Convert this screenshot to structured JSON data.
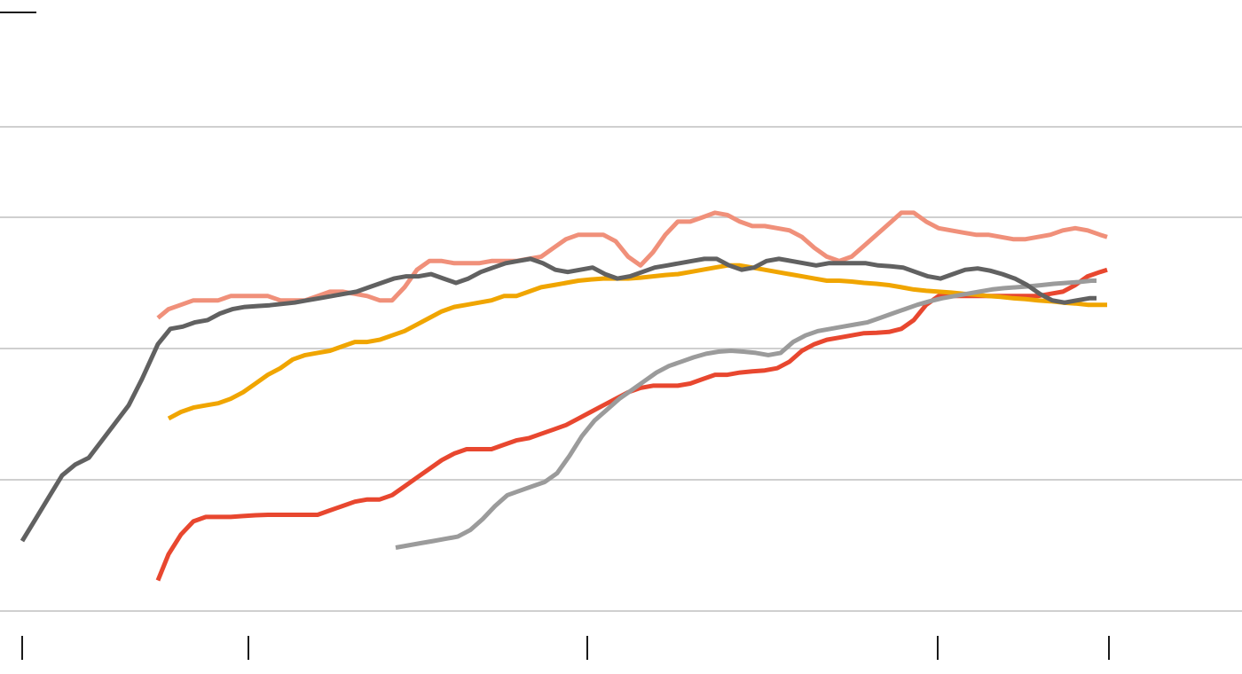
{
  "chart_data": {
    "type": "line",
    "title": "",
    "xlabel": "",
    "ylabel": "",
    "grid": true,
    "xlim": [
      0,
      1400
    ],
    "ylim": [
      0,
      108
    ],
    "gridlines_y": [
      0,
      30,
      60,
      90,
      110
    ],
    "ticks_x": [
      25,
      280,
      662,
      1057,
      1250
    ],
    "colors": [
      "#f0907a",
      "#e8472f",
      "#f0a500",
      "#9b9b9b",
      "#616161"
    ],
    "series": [
      {
        "x": [
          178,
          190,
          204,
          218,
          232,
          246,
          260,
          274,
          288,
          302,
          316,
          330,
          344,
          358,
          372,
          386,
          400,
          414,
          428,
          442,
          456,
          470,
          484,
          498,
          512,
          526,
          540,
          554,
          568,
          582,
          596,
          610,
          624,
          638,
          652,
          666,
          680,
          694,
          708,
          722,
          736,
          750,
          764,
          778,
          792,
          806,
          820,
          834,
          848,
          862,
          876,
          890,
          904,
          918,
          932,
          946,
          960,
          974,
          988,
          1002,
          1016,
          1030,
          1044,
          1058,
          1072,
          1086,
          1100,
          1114,
          1128,
          1142,
          1156,
          1170,
          1184,
          1198,
          1212,
          1226,
          1240,
          1248
        ],
        "y": [
          67,
          69,
          70,
          71,
          71,
          71,
          72,
          72,
          72,
          72,
          71,
          71,
          71,
          72,
          73,
          73,
          72.5,
          72,
          71,
          71,
          74,
          78,
          80,
          80,
          79.5,
          79.5,
          79.5,
          80,
          80,
          80,
          80.5,
          81,
          83,
          85,
          86,
          86,
          86,
          84.5,
          81,
          79,
          82,
          86,
          89,
          89,
          90,
          91,
          90.5,
          89,
          88,
          88,
          87.5,
          87,
          85.5,
          83,
          81,
          80,
          81,
          83.5,
          86,
          88.5,
          91,
          91,
          89,
          87.5,
          87,
          86.5,
          86,
          86,
          85.5,
          85,
          85,
          85.5,
          86,
          87,
          87.5,
          87,
          86,
          85.5
        ]
      },
      {
        "x": [
          178,
          190,
          204,
          218,
          232,
          246,
          260,
          274,
          288,
          302,
          316,
          330,
          344,
          358,
          372,
          386,
          400,
          414,
          428,
          442,
          456,
          470,
          484,
          498,
          512,
          526,
          540,
          554,
          568,
          582,
          596,
          610,
          624,
          638,
          652,
          666,
          680,
          694,
          708,
          722,
          736,
          750,
          764,
          778,
          792,
          806,
          820,
          834,
          848,
          862,
          876,
          890,
          904,
          918,
          932,
          946,
          960,
          974,
          988,
          1002,
          1016,
          1030,
          1044,
          1058,
          1072,
          1086,
          1100,
          1114,
          1128,
          1142,
          1156,
          1170,
          1184,
          1198,
          1212,
          1226,
          1240,
          1248
        ],
        "y": [
          7,
          13,
          17.5,
          20.5,
          21.5,
          21.5,
          21.5,
          21.7,
          21.9,
          22,
          22,
          22,
          22,
          22,
          23,
          24,
          25,
          25.5,
          25.5,
          26.5,
          28.5,
          30.5,
          32.5,
          34.5,
          36,
          37,
          37,
          37,
          38,
          39,
          39.5,
          40.5,
          41.5,
          42.5,
          44,
          45.5,
          47,
          48.5,
          50,
          51,
          51.5,
          51.5,
          51.5,
          52,
          53,
          54,
          54,
          54.5,
          54.8,
          55,
          55.5,
          57,
          59.5,
          61,
          62,
          62.5,
          63,
          63.5,
          63.6,
          63.8,
          64.5,
          66.5,
          70,
          72,
          72,
          72,
          72,
          72,
          72,
          72,
          72,
          72,
          72.5,
          73,
          74.5,
          76.5,
          77.5,
          78
        ]
      },
      {
        "x": [
          190,
          204,
          218,
          232,
          246,
          260,
          274,
          288,
          302,
          316,
          330,
          344,
          358,
          372,
          386,
          400,
          414,
          428,
          442,
          456,
          470,
          484,
          498,
          512,
          526,
          540,
          554,
          568,
          582,
          596,
          610,
          624,
          638,
          652,
          666,
          680,
          694,
          708,
          722,
          736,
          750,
          764,
          778,
          792,
          806,
          820,
          834,
          848,
          862,
          876,
          890,
          904,
          918,
          932,
          946,
          960,
          974,
          988,
          1002,
          1016,
          1030,
          1044,
          1058,
          1072,
          1086,
          1100,
          1114,
          1128,
          1142,
          1156,
          1170,
          1184,
          1198,
          1212,
          1226,
          1240,
          1248
        ],
        "y": [
          44,
          45.5,
          46.5,
          47,
          47.5,
          48.5,
          50,
          52,
          54,
          55.5,
          57.5,
          58.5,
          59,
          59.5,
          60.5,
          61.5,
          61.5,
          62,
          63,
          64,
          65.5,
          67,
          68.5,
          69.5,
          70,
          70.5,
          71,
          72,
          72,
          73,
          74,
          74.5,
          75,
          75.5,
          75.8,
          76,
          76,
          76,
          76.2,
          76.5,
          76.8,
          77,
          77.5,
          78,
          78.5,
          79,
          79,
          78.5,
          78,
          77.5,
          77,
          76.5,
          76,
          75.5,
          75.5,
          75.3,
          75,
          74.8,
          74.5,
          74,
          73.5,
          73.2,
          73,
          72.8,
          72.5,
          72.3,
          72,
          71.8,
          71.5,
          71.3,
          71,
          70.8,
          70.5,
          70.3,
          70,
          70,
          70
        ]
      },
      {
        "x": [
          446,
          460,
          474,
          488,
          502,
          516,
          530,
          544,
          558,
          572,
          586,
          600,
          614,
          628,
          642,
          656,
          670,
          684,
          698,
          712,
          726,
          740,
          754,
          768,
          782,
          796,
          810,
          824,
          838,
          852,
          866,
          880,
          894,
          908,
          922,
          936,
          950,
          964,
          978,
          992,
          1006,
          1020,
          1034,
          1048,
          1062,
          1076,
          1090,
          1104,
          1118,
          1132,
          1146,
          1160,
          1174,
          1188,
          1202,
          1216,
          1230,
          1236
        ],
        "y": [
          14.5,
          15,
          15.5,
          16,
          16.5,
          17,
          18.5,
          21,
          24,
          26.5,
          27.5,
          28.5,
          29.5,
          31.5,
          35.5,
          40,
          43.5,
          46,
          48.5,
          50.5,
          52.5,
          54.5,
          56,
          57,
          58,
          58.8,
          59.3,
          59.5,
          59.3,
          59,
          58.5,
          59,
          61.5,
          63,
          64,
          64.5,
          65,
          65.5,
          66,
          67,
          68,
          69,
          70,
          70.8,
          71.5,
          72,
          72.5,
          73,
          73.5,
          73.8,
          74,
          74.2,
          74.5,
          74.8,
          75,
          75.2,
          75.5,
          75.5
        ]
      },
      {
        "x": [
          25,
          40,
          55,
          70,
          85,
          100,
          115,
          130,
          145,
          160,
          178,
          192,
          206,
          220,
          234,
          248,
          262,
          276,
          290,
          304,
          318,
          332,
          346,
          360,
          374,
          388,
          402,
          416,
          430,
          444,
          458,
          472,
          486,
          500,
          514,
          528,
          542,
          556,
          570,
          584,
          598,
          612,
          626,
          640,
          654,
          668,
          682,
          696,
          710,
          724,
          738,
          752,
          766,
          780,
          794,
          808,
          822,
          836,
          850,
          864,
          878,
          892,
          906,
          920,
          934,
          948,
          962,
          976,
          990,
          1004,
          1018,
          1032,
          1046,
          1060,
          1074,
          1088,
          1102,
          1116,
          1130,
          1144,
          1158,
          1172,
          1186,
          1200,
          1214,
          1228,
          1236
        ],
        "y": [
          16,
          21,
          26,
          31,
          33.5,
          35,
          39,
          43,
          47,
          53,
          61,
          64.5,
          65,
          66,
          66.5,
          68,
          69,
          69.5,
          69.7,
          69.9,
          70.2,
          70.5,
          71,
          71.5,
          72,
          72.5,
          73,
          74,
          75,
          76,
          76.5,
          76.5,
          77,
          76,
          75,
          76,
          77.5,
          78.5,
          79.5,
          80,
          80.5,
          79.5,
          78,
          77.5,
          78,
          78.5,
          77,
          76,
          76.5,
          77.5,
          78.5,
          79,
          79.5,
          80,
          80.5,
          80.5,
          79,
          78,
          78.5,
          80,
          80.5,
          80,
          79.5,
          79,
          79.5,
          79.5,
          79.5,
          79.5,
          79,
          78.8,
          78.5,
          77.5,
          76.5,
          76,
          77,
          78,
          78.3,
          77.8,
          77,
          76,
          74.5,
          72.5,
          71,
          70.5,
          71,
          71.5,
          71.5
        ]
      }
    ]
  },
  "header": {
    "legend_mark_label": ""
  }
}
